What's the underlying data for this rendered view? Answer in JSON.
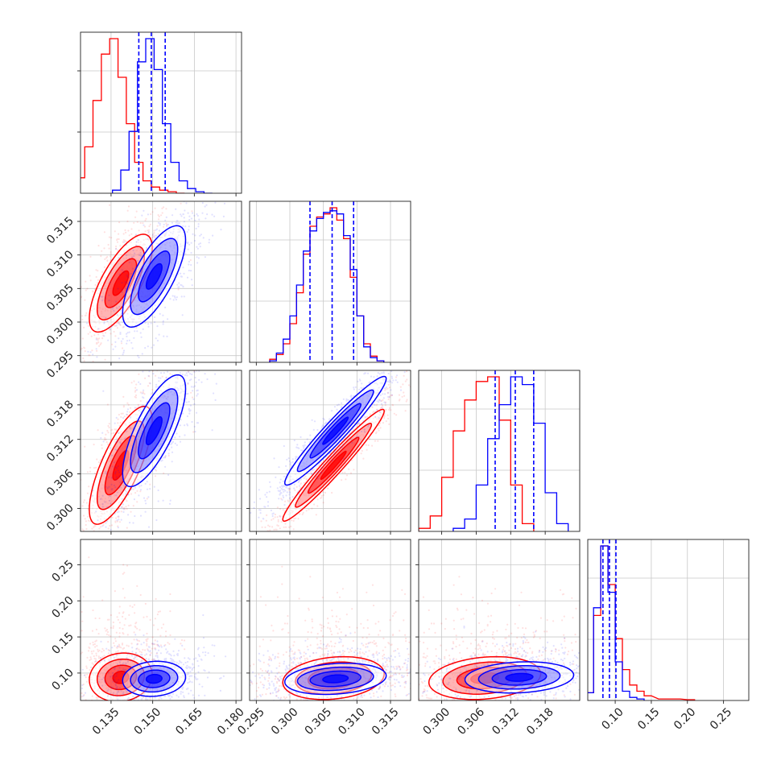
{
  "colors": {
    "red": "#ff0000",
    "blue": "#0000ff",
    "grid": "#c8c8c8",
    "axis": "#222222"
  },
  "chart_data": {
    "type": "scatter",
    "description_type": "corner-plot",
    "grid": true,
    "legend": "none",
    "series": [
      {
        "color": "#ff0000",
        "marginals": [
          {
            "hist_x": [
              0.124,
              0.127,
              0.13,
              0.133,
              0.136,
              0.139,
              0.142,
              0.145,
              0.148,
              0.151,
              0.154,
              0.157,
              0.16
            ],
            "hist_y": [
              0.1,
              0.3,
              0.6,
              0.9,
              1.0,
              0.75,
              0.45,
              0.2,
              0.08,
              0.04,
              0.02,
              0.01,
              0.0
            ]
          },
          {
            "hist_x": [
              0.2975,
              0.2985,
              0.2995,
              0.3005,
              0.3015,
              0.3025,
              0.3035,
              0.3045,
              0.3055,
              0.3065,
              0.3075,
              0.3085,
              0.3095,
              0.3105,
              0.3115,
              0.3125,
              0.3135
            ],
            "hist_y": [
              0.02,
              0.05,
              0.12,
              0.25,
              0.45,
              0.7,
              0.88,
              0.94,
              0.96,
              1.0,
              0.92,
              0.8,
              0.55,
              0.3,
              0.12,
              0.04,
              0.01
            ]
          },
          {
            "hist_x": [
              0.297,
              0.299,
              0.301,
              0.303,
              0.305,
              0.307,
              0.309,
              0.311,
              0.313,
              0.315
            ],
            "hist_y": [
              0.02,
              0.1,
              0.35,
              0.65,
              0.85,
              0.97,
              1.0,
              0.72,
              0.3,
              0.05
            ]
          },
          {
            "hist_x": [
              0.065,
              0.075,
              0.085,
              0.095,
              0.105,
              0.115,
              0.125,
              0.135,
              0.145,
              0.165,
              0.185,
              0.205
            ],
            "hist_y": [
              0.05,
              0.55,
              1.0,
              0.75,
              0.4,
              0.2,
              0.1,
              0.06,
              0.03,
              0.01,
              0.01,
              0.005
            ]
          }
        ]
      },
      {
        "color": "#0000ff",
        "marginals": [
          {
            "hist_x": [
              0.137,
              0.14,
              0.143,
              0.146,
              0.149,
              0.152,
              0.155,
              0.158,
              0.161,
              0.164,
              0.167,
              0.17
            ],
            "hist_y": [
              0.02,
              0.15,
              0.4,
              0.85,
              1.0,
              0.8,
              0.45,
              0.2,
              0.08,
              0.03,
              0.01,
              0.0
            ]
          },
          {
            "hist_x": [
              0.2975,
              0.2985,
              0.2995,
              0.3005,
              0.3015,
              0.3025,
              0.3035,
              0.3045,
              0.3055,
              0.3065,
              0.3075,
              0.3085,
              0.3095,
              0.3105,
              0.3115,
              0.3125,
              0.3135
            ],
            "hist_y": [
              0.01,
              0.06,
              0.15,
              0.3,
              0.5,
              0.72,
              0.85,
              0.93,
              0.97,
              0.98,
              0.96,
              0.82,
              0.6,
              0.3,
              0.1,
              0.03,
              0.01
            ]
          },
          {
            "hist_x": [
              0.303,
              0.305,
              0.307,
              0.309,
              0.311,
              0.313,
              0.315,
              0.317,
              0.319,
              0.321
            ],
            "hist_y": [
              0.02,
              0.08,
              0.3,
              0.6,
              0.82,
              1.0,
              0.95,
              0.7,
              0.25,
              0.05
            ]
          },
          {
            "hist_x": [
              0.065,
              0.075,
              0.085,
              0.095,
              0.105,
              0.115,
              0.125,
              0.135
            ],
            "hist_y": [
              0.05,
              0.6,
              1.0,
              0.7,
              0.25,
              0.06,
              0.02,
              0.01
            ]
          }
        ]
      }
    ],
    "quantiles_blue": [
      [
        0.145,
        0.1495,
        0.1545
      ],
      [
        0.303,
        0.3063,
        0.3095
      ],
      [
        0.3093,
        0.3128,
        0.316
      ],
      [
        0.083,
        0.092,
        0.101
      ]
    ],
    "parameters": [
      {
        "range": [
          0.124,
          0.182
        ],
        "ticks": [
          0.135,
          0.15,
          0.165,
          0.18
        ],
        "tick_labels": [
          "0.135",
          "0.150",
          "0.165",
          "0.180"
        ]
      },
      {
        "range": [
          0.294,
          0.318
        ],
        "ticks": [
          0.295,
          0.3,
          0.305,
          0.31,
          0.315
        ],
        "tick_labels": [
          "0.295",
          "0.300",
          "0.305",
          "0.310",
          "0.315"
        ]
      },
      {
        "range": [
          0.296,
          0.324
        ],
        "ticks": [
          0.3,
          0.306,
          0.312,
          0.318
        ],
        "tick_labels": [
          "0.300",
          "0.306",
          "0.312",
          "0.318"
        ]
      },
      {
        "range": [
          0.062,
          0.285
        ],
        "ticks": [
          0.1,
          0.15,
          0.2,
          0.25
        ],
        "tick_labels": [
          "0.10",
          "0.15",
          "0.20",
          "0.25"
        ]
      }
    ],
    "contours": {
      "1_0": {
        "red": {
          "center": [
            0.1385,
            0.3058
          ],
          "sx": 0.0042,
          "sy": 0.0027,
          "rho": 0.72
        },
        "blue": {
          "center": [
            0.1505,
            0.3068
          ],
          "sx": 0.0042,
          "sy": 0.0028,
          "rho": 0.72
        }
      },
      "2_0": {
        "red": {
          "center": [
            0.1385,
            0.3075
          ],
          "sx": 0.0042,
          "sy": 0.0038,
          "rho": 0.75
        },
        "blue": {
          "center": [
            0.1505,
            0.3135
          ],
          "sx": 0.0042,
          "sy": 0.0036,
          "rho": 0.75
        }
      },
      "2_1": {
        "red": {
          "center": [
            0.3065,
            0.3075
          ],
          "sx": 0.0028,
          "sy": 0.0036,
          "rho": 0.97
        },
        "blue": {
          "center": [
            0.3068,
            0.3135
          ],
          "sx": 0.0028,
          "sy": 0.0035,
          "rho": 0.96
        }
      },
      "3_0": {
        "red": {
          "center": [
            0.1385,
            0.094
          ],
          "sx": 0.0042,
          "sy": 0.0125,
          "rho": 0.1
        },
        "blue": {
          "center": [
            0.1505,
            0.092
          ],
          "sx": 0.0042,
          "sy": 0.009,
          "rho": 0.1
        }
      },
      "3_1": {
        "red": {
          "center": [
            0.3065,
            0.093
          ],
          "sx": 0.0028,
          "sy": 0.011,
          "rho": 0.2
        },
        "blue": {
          "center": [
            0.3068,
            0.092
          ],
          "sx": 0.0028,
          "sy": 0.008,
          "rho": 0.2
        }
      },
      "3_2": {
        "red": {
          "center": [
            0.3075,
            0.093
          ],
          "sx": 0.0036,
          "sy": 0.011,
          "rho": 0.2
        },
        "blue": {
          "center": [
            0.3135,
            0.094
          ],
          "sx": 0.0035,
          "sy": 0.008,
          "rho": 0.15
        }
      }
    }
  }
}
